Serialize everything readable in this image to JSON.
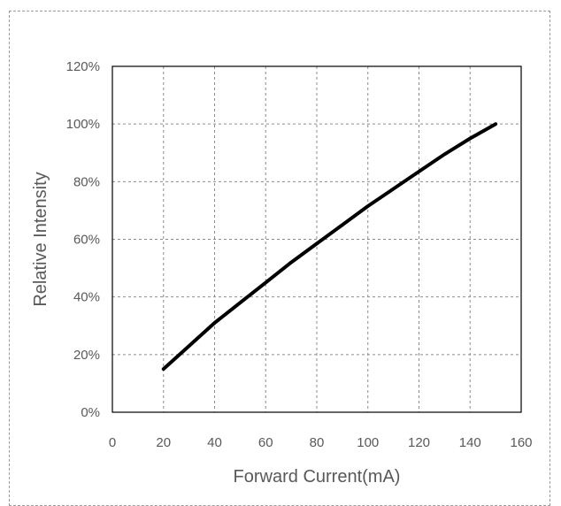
{
  "chart_data": {
    "type": "line",
    "xlabel": "Forward Current(mA)",
    "ylabel": "Relative Intensity",
    "xlim": [
      0,
      160
    ],
    "ylim": [
      0,
      120
    ],
    "x_ticks": [
      "0",
      "20",
      "40",
      "60",
      "80",
      "100",
      "120",
      "140",
      "160"
    ],
    "y_ticks": [
      "0%",
      "20%",
      "40%",
      "60%",
      "80%",
      "100%",
      "120%"
    ],
    "grid": true,
    "legend": "none",
    "series": [
      {
        "color": "#000000",
        "x": [
          20,
          30,
          40,
          50,
          60,
          70,
          80,
          90,
          100,
          110,
          120,
          130,
          140,
          150
        ],
        "y": [
          15,
          23,
          31,
          38,
          45,
          52,
          58.5,
          65,
          71.5,
          77.5,
          83.5,
          89.5,
          95,
          100
        ]
      }
    ]
  }
}
